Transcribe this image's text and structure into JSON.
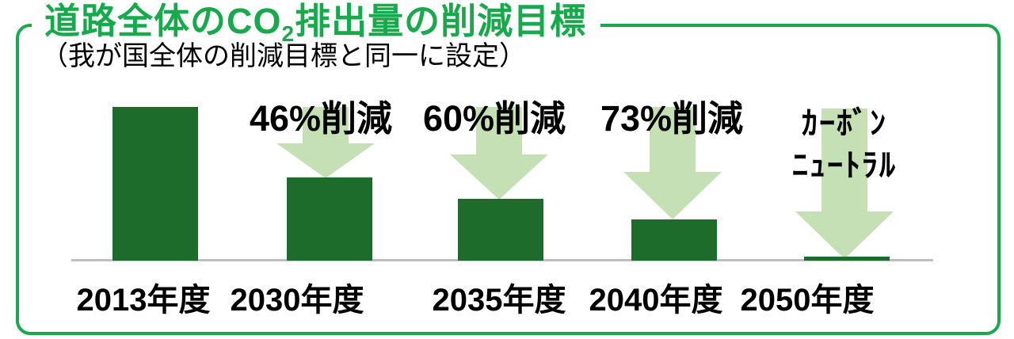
{
  "header": {
    "title_prefix": "道路全体のCO",
    "title_sub": "2",
    "title_suffix": "排出量の削減目標",
    "subtitle": "（我が国全体の削減目標と同一に設定）"
  },
  "colors": {
    "green_accent": "#17A94C",
    "bar_green": "#1E6C2B",
    "arrow_green": "#C5E0B4",
    "axis_gray": "#BFBFBF",
    "text_black": "#000000"
  },
  "chart_data": {
    "type": "bar",
    "title": "道路全体のCO2排出量の削減目標",
    "subtitle": "（我が国全体の削減目標と同一に設定）",
    "categories": [
      "2013年度",
      "2030年度",
      "2035年度",
      "2040年度",
      "2050年度"
    ],
    "values": [
      100,
      54,
      40,
      27,
      0
    ],
    "baseline_category": "2013年度",
    "reduction_percent_vs_2013": [
      0,
      46,
      60,
      73,
      100
    ],
    "annotations": {
      "reduction_2030": "46%削減",
      "reduction_2035": "60%削減",
      "reduction_2040": "73%削減",
      "neutral_2050_line1": "ｶｰﾎﾞﾝ",
      "neutral_2050_line2": "ﾆｭｰﾄﾗﾙ"
    },
    "ylim": [
      0,
      100
    ],
    "grid": false,
    "legend": false,
    "y_axis_shown": false,
    "bar_color": "#1E6C2B",
    "arrow_color": "#C5E0B4"
  }
}
